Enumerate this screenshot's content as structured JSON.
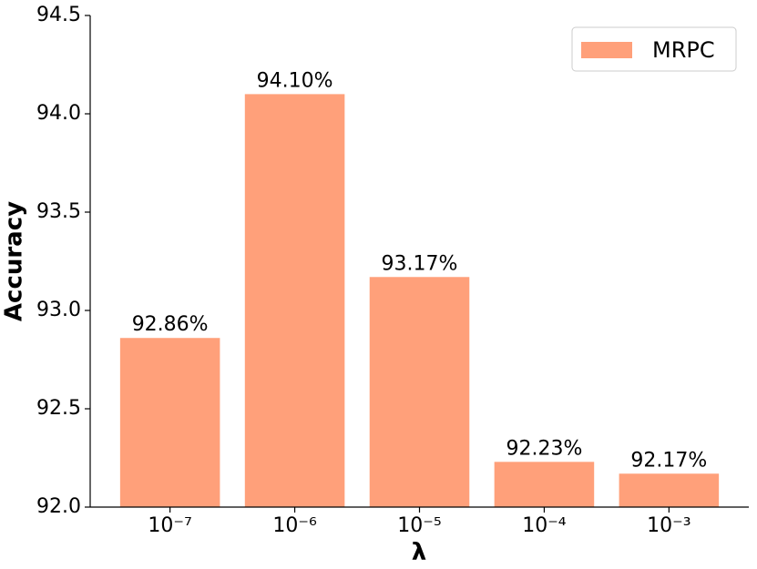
{
  "chart_data": {
    "type": "bar",
    "x_label": "λ",
    "y_label": "Accuracy",
    "categories": [
      "10⁻⁷",
      "10⁻⁶",
      "10⁻⁵",
      "10⁻⁴",
      "10⁻³"
    ],
    "series": [
      {
        "name": "MRPC",
        "color": "#ffa07a",
        "values": [
          92.86,
          94.1,
          93.17,
          92.23,
          92.17
        ],
        "value_labels": [
          "92.86%",
          "94.10%",
          "93.17%",
          "92.23%",
          "92.17%"
        ]
      }
    ],
    "ylim": [
      92.0,
      94.5
    ],
    "yticks": [
      {
        "value": 92.0,
        "label": "92.0"
      },
      92.5,
      {
        "value": 93.0,
        "label": "93.0"
      },
      93.5,
      {
        "value": 94.0,
        "label": "94.0"
      },
      94.5
    ],
    "legend": "upper right",
    "grid": false
  }
}
